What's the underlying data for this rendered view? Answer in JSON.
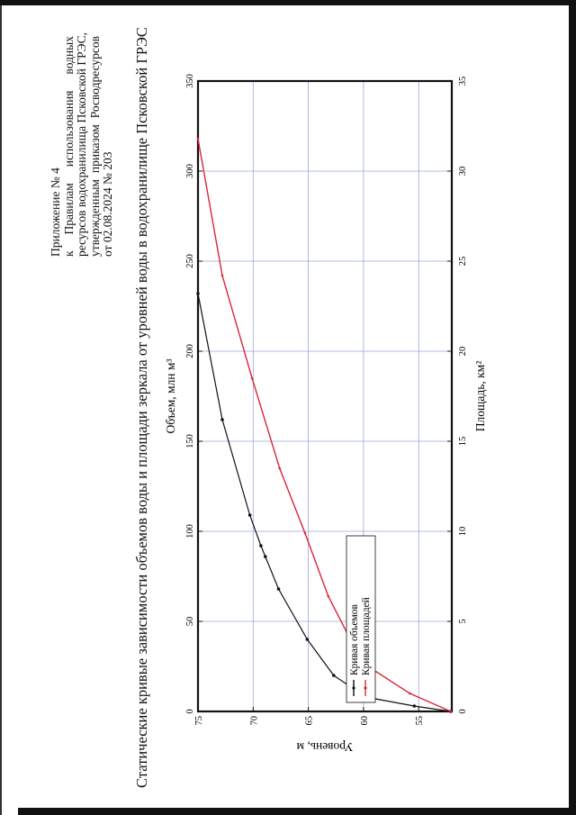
{
  "appendix": {
    "line1": "Приложение № 4",
    "line2": "к  Правилам  использования  водных",
    "line3": "ресурсов водохранилища Псковской ГРЭС,",
    "line4": "утвержденным  приказом  Росводресурсов",
    "line5": "от 02.08.2024 № 203"
  },
  "colors": {
    "volume": "#111111",
    "area": "#d9263a",
    "grid": "#9aa7d8",
    "text": "#111111"
  },
  "chart_data": {
    "type": "line",
    "title": "Статические кривые зависимости объемов воды и площади зеркала от уровней воды в водохранилище Псковской ГРЭС",
    "ylabel": "Уровень, м",
    "ylim": [
      52,
      75
    ],
    "yticks": [
      "55",
      "60",
      "65",
      "70",
      "75"
    ],
    "x_volume_label": "Объем, млн м³",
    "x_volume_lim": [
      0,
      350
    ],
    "x_volume_ticks": [
      "0",
      "50",
      "100",
      "150",
      "200",
      "250",
      "300",
      "350"
    ],
    "x_area_label": "Площадь, км²",
    "x_area_lim": [
      0,
      35
    ],
    "x_area_ticks": [
      "0",
      "5",
      "10",
      "15",
      "20",
      "25",
      "30",
      "35"
    ],
    "grid": true,
    "legend_position": "bottom-left",
    "series": [
      {
        "name": "Кривая объемов",
        "axis": "volume",
        "points": [
          [
            0,
            52.1
          ],
          [
            3,
            55.4
          ],
          [
            8,
            59.8
          ],
          [
            20,
            62.7
          ],
          [
            40,
            65.1
          ],
          [
            68,
            67.7
          ],
          [
            86,
            68.9
          ],
          [
            92,
            69.3
          ],
          [
            109,
            70.3
          ],
          [
            162,
            72.8
          ],
          [
            232,
            75.0
          ]
        ]
      },
      {
        "name": "Кривая площадей",
        "axis": "area",
        "points": [
          [
            0,
            52.1
          ],
          [
            1,
            55.8
          ],
          [
            2.7,
            60.1
          ],
          [
            6.4,
            63.2
          ],
          [
            9.9,
            65.3
          ],
          [
            13.5,
            67.6
          ],
          [
            18.5,
            70.1
          ],
          [
            24.2,
            72.8
          ],
          [
            31.8,
            75.0
          ]
        ]
      }
    ]
  }
}
